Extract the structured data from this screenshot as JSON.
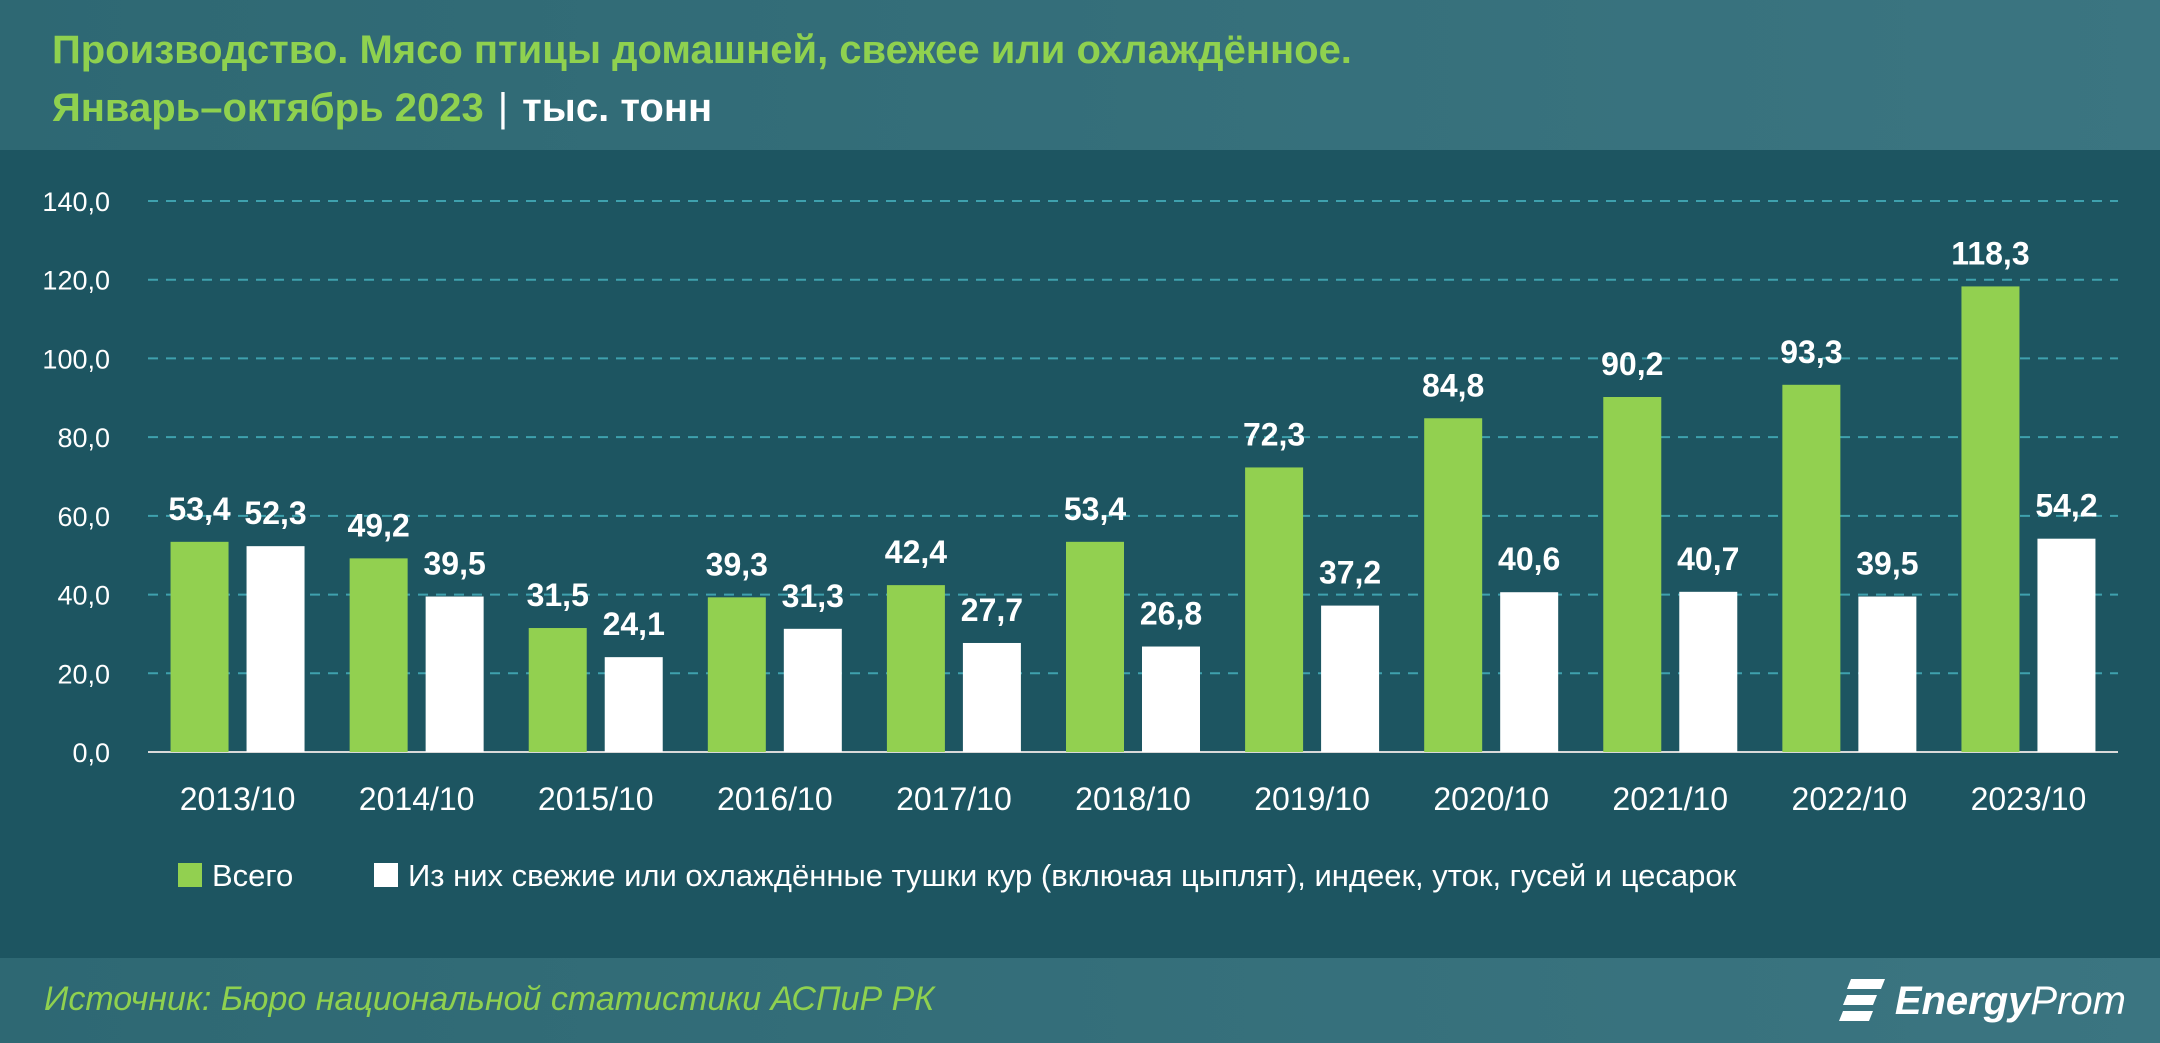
{
  "header": {
    "title_line1": "Производство. Мясо птицы домашней, свежее или охлаждённое.",
    "title_line2": "Январь–октябрь 2023",
    "separator": "|",
    "unit": "тыс. тонн"
  },
  "footer": {
    "source": "Источник: Бюро национальной статистики АСПиР РК",
    "logo_bold": "Energy",
    "logo_light": "Prom"
  },
  "colors": {
    "background": "#1d5561",
    "header": "#3b7581",
    "accent_green": "#8fd14f",
    "series_total": "#92d050",
    "series_carcasses": "#ffffff",
    "grid": "#3fa1ae"
  },
  "chart_data": {
    "type": "bar",
    "title": "Производство. Мясо птицы домашней, свежее или охлаждённое. Январь–октябрь 2023",
    "categories": [
      "2013/10",
      "2014/10",
      "2015/10",
      "2016/10",
      "2017/10",
      "2018/10",
      "2019/10",
      "2020/10",
      "2021/10",
      "2022/10",
      "2023/10"
    ],
    "series": [
      {
        "name": "Всего",
        "color": "#92d050",
        "values": [
          53.4,
          49.2,
          31.5,
          39.3,
          42.4,
          53.4,
          72.3,
          84.8,
          90.2,
          93.3,
          118.3
        ],
        "labels": [
          "53,4",
          "49,2",
          "31,5",
          "39,3",
          "42,4",
          "53,4",
          "72,3",
          "84,8",
          "90,2",
          "93,3",
          "118,3"
        ]
      },
      {
        "name": "Из них свежие или охлаждённые тушки кур (включая цыплят), индеек, уток, гусей и цесарок",
        "color": "#ffffff",
        "values": [
          52.3,
          39.5,
          24.1,
          31.3,
          27.7,
          26.8,
          37.2,
          40.6,
          40.7,
          39.5,
          54.2
        ],
        "labels": [
          "52,3",
          "39,5",
          "24,1",
          "31,3",
          "27,7",
          "26,8",
          "37,2",
          "40,6",
          "40,7",
          "39,5",
          "54,2"
        ]
      }
    ],
    "ylim": [
      0,
      140
    ],
    "yticks": [
      0,
      20,
      40,
      60,
      80,
      100,
      120,
      140
    ],
    "ytick_labels": [
      "0,0",
      "20,0",
      "40,0",
      "60,0",
      "80,0",
      "100,0",
      "120,0",
      "140,0"
    ],
    "grid": true,
    "legend_position": "bottom-left"
  }
}
